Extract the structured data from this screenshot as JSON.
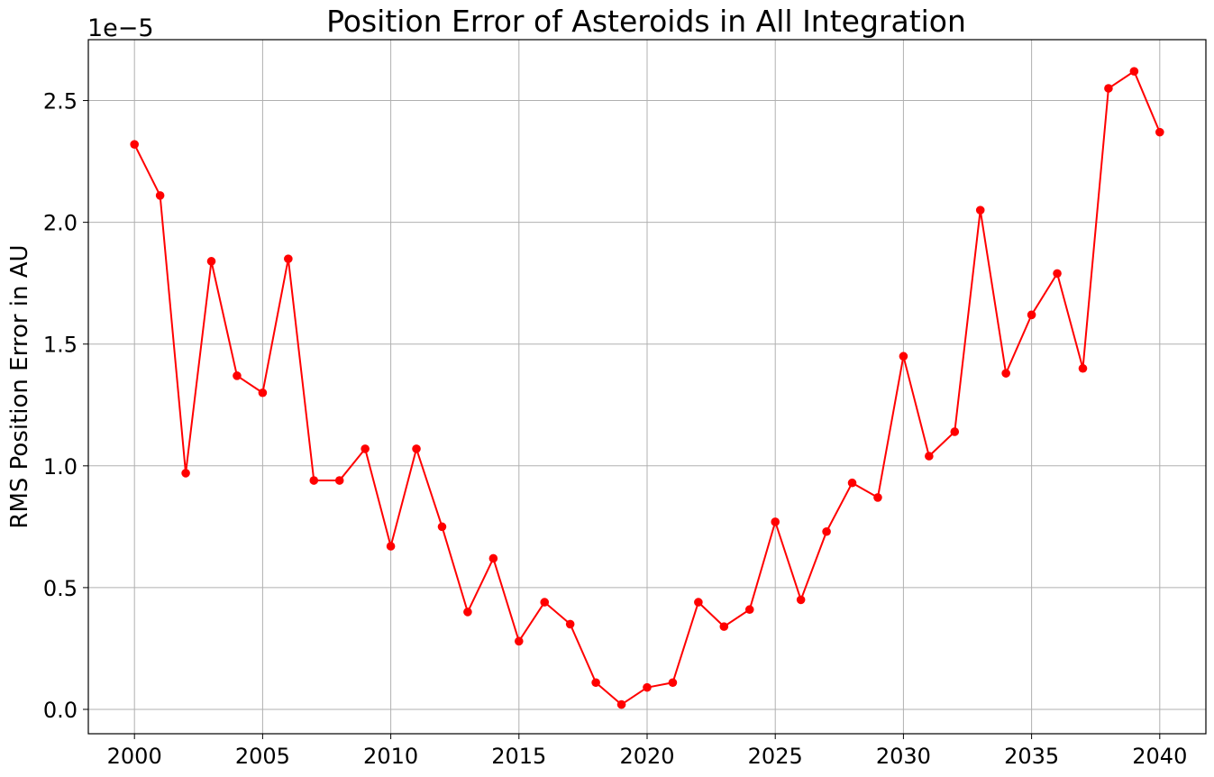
{
  "chart_data": {
    "type": "line",
    "title": "Position Error of Asteroids in All Integration",
    "xlabel": "",
    "ylabel": "RMS Position Error in AU",
    "y_offset_label": "1e−5",
    "y_multiplier": 1e-05,
    "xlim": [
      1998.2,
      2041.8
    ],
    "ylim": [
      -0.1,
      2.75
    ],
    "x_ticks": [
      2000,
      2005,
      2010,
      2015,
      2020,
      2025,
      2030,
      2035,
      2040
    ],
    "x_tick_labels": [
      "2000",
      "2005",
      "2010",
      "2015",
      "2020",
      "2025",
      "2030",
      "2035",
      "2040"
    ],
    "y_ticks": [
      0.0,
      0.5,
      1.0,
      1.5,
      2.0,
      2.5
    ],
    "y_tick_labels": [
      "0.0",
      "0.5",
      "1.0",
      "1.5",
      "2.0",
      "2.5"
    ],
    "grid": true,
    "series": [
      {
        "color": "#ff0000",
        "marker": "circle",
        "x": [
          2000,
          2001,
          2002,
          2003,
          2004,
          2005,
          2006,
          2007,
          2008,
          2009,
          2010,
          2011,
          2012,
          2013,
          2014,
          2015,
          2016,
          2017,
          2018,
          2019,
          2020,
          2021,
          2022,
          2023,
          2024,
          2025,
          2026,
          2027,
          2028,
          2029,
          2030,
          2031,
          2032,
          2033,
          2034,
          2035,
          2036,
          2037,
          2038,
          2039,
          2040
        ],
        "values": [
          2.32,
          2.11,
          0.97,
          1.84,
          1.37,
          1.3,
          1.85,
          0.94,
          0.94,
          1.07,
          0.67,
          1.07,
          0.75,
          0.4,
          0.62,
          0.28,
          0.44,
          0.35,
          0.11,
          0.02,
          0.09,
          0.11,
          0.44,
          0.34,
          0.41,
          0.77,
          0.45,
          0.73,
          0.93,
          0.87,
          1.45,
          1.04,
          1.14,
          2.05,
          1.38,
          1.62,
          1.79,
          1.4,
          2.55,
          2.62,
          2.37
        ]
      }
    ]
  }
}
